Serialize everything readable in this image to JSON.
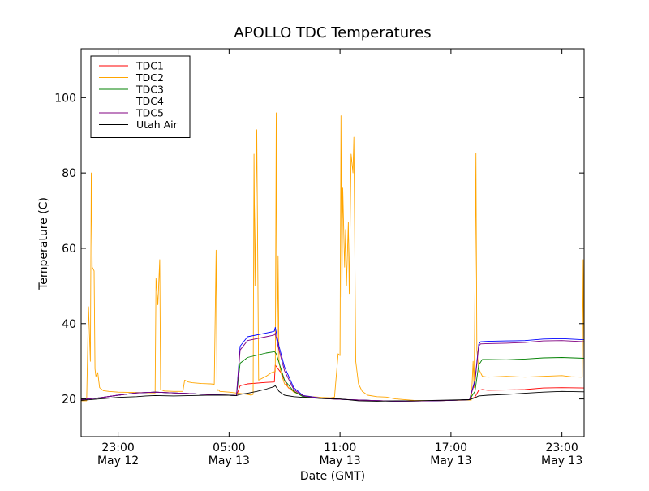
{
  "chart_data": {
    "type": "line",
    "title": "APOLLO TDC Temperatures",
    "xlabel": "Date (GMT)",
    "ylabel": "Temperature (C)",
    "x_unit": "hours since May 12 20:00 GMT",
    "xlim": [
      1.0,
      28.2
    ],
    "ylim": [
      10,
      113
    ],
    "yticks": [
      20,
      40,
      60,
      80,
      100
    ],
    "xticks": [
      {
        "x": 3,
        "time": "23:00",
        "date": "May 12"
      },
      {
        "x": 9,
        "time": "05:00",
        "date": "May 13"
      },
      {
        "x": 15,
        "time": "11:00",
        "date": "May 13"
      },
      {
        "x": 21,
        "time": "17:00",
        "date": "May 13"
      },
      {
        "x": 27,
        "time": "23:00",
        "date": "May 13"
      }
    ],
    "grid": false,
    "legend_position": "upper left",
    "series": [
      {
        "name": "TDC1",
        "color": "#ff0000",
        "x": [
          1.0,
          2.0,
          3.0,
          4.0,
          5.0,
          6.0,
          7.0,
          8.0,
          9.0,
          9.4,
          9.6,
          10.0,
          11.0,
          11.45,
          11.5,
          11.8,
          12.2,
          12.8,
          13.5,
          14.5,
          16.0,
          18.0,
          20.0,
          21.0,
          22.0,
          22.3,
          22.5,
          22.7,
          23.0,
          24.0,
          25.0,
          26.0,
          27.0,
          28.2
        ],
        "y": [
          19.8,
          20.3,
          21.0,
          21.6,
          21.8,
          21.6,
          21.4,
          21.1,
          21.0,
          20.9,
          23.5,
          24.0,
          24.4,
          24.5,
          29.0,
          27.0,
          23.0,
          21.2,
          20.3,
          20.0,
          19.7,
          19.4,
          19.5,
          19.6,
          19.8,
          20.5,
          22.3,
          22.5,
          22.3,
          22.4,
          22.5,
          22.9,
          23.0,
          22.9
        ]
      },
      {
        "name": "TDC2",
        "color": "#ffa500",
        "x": [
          1.0,
          1.3,
          1.4,
          1.5,
          1.55,
          1.6,
          1.7,
          1.75,
          1.8,
          1.9,
          2.0,
          2.2,
          2.5,
          3.0,
          4.0,
          5.0,
          5.05,
          5.15,
          5.25,
          5.3,
          5.5,
          6.0,
          6.5,
          6.6,
          6.8,
          7.0,
          7.5,
          8.0,
          8.2,
          8.3,
          8.35,
          8.4,
          8.5,
          9.0,
          9.5,
          10.0,
          10.2,
          10.3,
          10.35,
          10.4,
          10.5,
          10.6,
          11.0,
          11.3,
          11.5,
          11.55,
          11.6,
          11.65,
          11.7,
          11.8,
          12.0,
          12.5,
          13.0,
          13.5,
          14.0,
          14.5,
          14.7,
          14.9,
          15.0,
          15.05,
          15.1,
          15.15,
          15.25,
          15.3,
          15.35,
          15.45,
          15.5,
          15.6,
          15.7,
          15.75,
          15.85,
          16.0,
          16.2,
          16.5,
          17.0,
          17.5,
          18.0,
          19.0,
          20.0,
          21.0,
          22.0,
          22.1,
          22.2,
          22.25,
          22.3,
          22.35,
          22.4,
          22.5,
          22.7,
          23.0,
          24.0,
          25.0,
          26.0,
          27.0,
          27.5,
          28.0,
          28.1,
          28.15,
          28.2
        ],
        "y": [
          19.5,
          19.5,
          44.5,
          30.0,
          80.0,
          55.0,
          54.0,
          28.0,
          26.0,
          27.0,
          23.0,
          22.2,
          22.0,
          21.8,
          21.7,
          21.6,
          52.0,
          45.0,
          57.0,
          22.5,
          22.1,
          22.0,
          22.0,
          25.0,
          24.5,
          24.3,
          24.1,
          24.0,
          23.9,
          59.5,
          22.0,
          22.5,
          22.0,
          21.8,
          21.5,
          21.2,
          21.0,
          21.2,
          85.0,
          50.0,
          91.5,
          25.0,
          26.0,
          27.0,
          27.3,
          96.0,
          29.0,
          58.0,
          30.0,
          27.0,
          24.0,
          21.8,
          20.9,
          20.6,
          20.4,
          20.3,
          20.5,
          32.0,
          31.5,
          95.2,
          47.0,
          76.0,
          55.0,
          65.0,
          50.0,
          67.0,
          48.0,
          85.0,
          80.0,
          89.5,
          30.0,
          24.0,
          22.0,
          21.0,
          20.6,
          20.5,
          20.0,
          19.6,
          19.5,
          19.6,
          19.7,
          19.7,
          30.0,
          23.0,
          50.0,
          85.3,
          33.0,
          28.0,
          26.0,
          25.8,
          26.0,
          25.8,
          26.0,
          26.2,
          25.9,
          25.8,
          25.8,
          57.0,
          26.0
        ]
      },
      {
        "name": "TDC3",
        "color": "#008000",
        "x": [
          1.0,
          2.0,
          3.0,
          4.0,
          5.0,
          6.0,
          7.0,
          8.0,
          9.0,
          9.4,
          9.6,
          10.0,
          11.0,
          11.4,
          11.45,
          11.55,
          12.0,
          12.5,
          13.0,
          14.0,
          15.0,
          16.0,
          18.0,
          20.0,
          21.0,
          22.0,
          22.3,
          22.5,
          22.7,
          23.0,
          24.0,
          25.0,
          26.0,
          27.0,
          28.2
        ],
        "y": [
          19.8,
          20.3,
          21.0,
          21.6,
          21.8,
          21.6,
          21.4,
          21.1,
          21.0,
          20.9,
          29.5,
          31.0,
          32.2,
          32.5,
          32.6,
          32.0,
          25.0,
          22.0,
          20.6,
          20.1,
          19.9,
          19.7,
          19.4,
          19.5,
          19.6,
          19.8,
          22.0,
          29.0,
          30.5,
          30.5,
          30.4,
          30.6,
          30.9,
          31.0,
          30.8
        ]
      },
      {
        "name": "TDC4",
        "color": "#0000ff",
        "x": [
          1.0,
          2.0,
          3.0,
          4.0,
          5.0,
          6.0,
          7.0,
          8.0,
          9.0,
          9.4,
          9.6,
          10.0,
          11.0,
          11.3,
          11.45,
          11.5,
          11.7,
          12.0,
          12.5,
          13.0,
          14.0,
          15.0,
          16.0,
          18.0,
          20.0,
          21.0,
          22.0,
          22.3,
          22.5,
          22.6,
          23.0,
          24.0,
          25.0,
          26.0,
          27.0,
          28.2
        ],
        "y": [
          19.8,
          20.3,
          21.0,
          21.6,
          21.8,
          21.6,
          21.4,
          21.1,
          21.0,
          20.9,
          34.0,
          36.5,
          37.5,
          37.8,
          38.0,
          39.0,
          34.0,
          28.5,
          23.0,
          20.9,
          20.2,
          19.9,
          19.7,
          19.4,
          19.5,
          19.6,
          19.8,
          25.0,
          34.5,
          35.2,
          35.3,
          35.4,
          35.5,
          35.9,
          36.0,
          35.7
        ]
      },
      {
        "name": "TDC5",
        "color": "#800080",
        "x": [
          1.0,
          2.0,
          3.0,
          4.0,
          5.0,
          6.0,
          7.0,
          8.0,
          9.0,
          9.4,
          9.6,
          10.0,
          11.0,
          11.3,
          11.45,
          11.5,
          11.7,
          12.0,
          12.5,
          13.0,
          14.0,
          15.0,
          16.0,
          18.0,
          20.0,
          21.0,
          22.0,
          22.3,
          22.5,
          22.6,
          23.0,
          24.0,
          25.0,
          26.0,
          27.0,
          28.2
        ],
        "y": [
          19.8,
          20.3,
          21.0,
          21.6,
          21.8,
          21.6,
          21.4,
          21.1,
          21.0,
          20.9,
          33.0,
          35.5,
          36.5,
          36.8,
          37.0,
          37.5,
          33.0,
          27.5,
          22.5,
          20.8,
          20.1,
          19.9,
          19.7,
          19.4,
          19.5,
          19.6,
          19.8,
          24.5,
          34.0,
          34.6,
          34.7,
          34.8,
          35.0,
          35.4,
          35.5,
          35.2
        ]
      },
      {
        "name": "Utah Air",
        "color": "#000000",
        "x": [
          1.0,
          2.0,
          3.0,
          4.0,
          4.5,
          5.0,
          6.0,
          7.0,
          8.0,
          9.0,
          9.4,
          9.6,
          10.0,
          10.5,
          11.0,
          11.4,
          11.5,
          11.7,
          12.0,
          12.5,
          13.0,
          14.0,
          15.0,
          16.0,
          17.0,
          18.0,
          19.0,
          20.0,
          21.0,
          22.0,
          22.3,
          22.5,
          23.0,
          24.0,
          25.0,
          26.0,
          27.0,
          28.2
        ],
        "y": [
          19.6,
          20.0,
          20.4,
          20.6,
          20.8,
          20.9,
          20.8,
          20.9,
          21.0,
          21.0,
          20.9,
          21.2,
          21.5,
          22.0,
          22.6,
          23.2,
          23.5,
          22.0,
          21.0,
          20.6,
          20.4,
          20.1,
          20.0,
          19.5,
          19.4,
          19.5,
          19.5,
          19.6,
          19.7,
          19.8,
          20.3,
          20.8,
          21.0,
          21.2,
          21.5,
          21.8,
          22.0,
          21.9
        ]
      }
    ]
  }
}
